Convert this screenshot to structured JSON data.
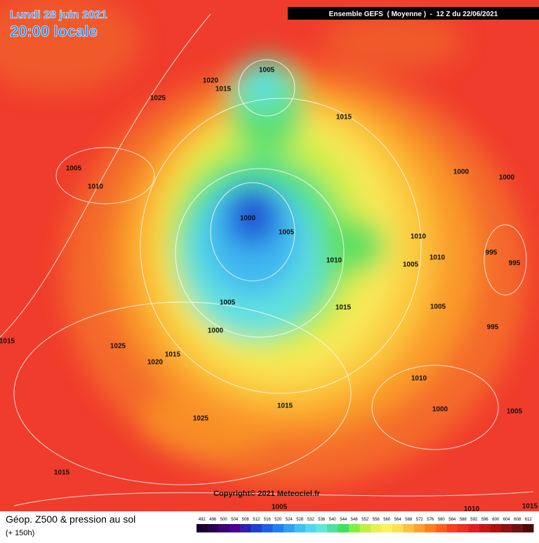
{
  "header": {
    "date": "Lundi 28 juin 2021",
    "time": "20:00 locale",
    "model": "Ensemble GEFS  ( Moyenne )  -  12 Z du 22/06/2021"
  },
  "map": {
    "copyright": "Copyright© 2021 Meteociel.fr",
    "isobar_labels": [
      "1005",
      "1020",
      "1015",
      "1025",
      "1015",
      "1005",
      "1010",
      "1000",
      "1000",
      "1000",
      "1005",
      "1010",
      "995",
      "1010",
      "1010",
      "1005",
      "995",
      "1005",
      "1015",
      "1005",
      "1000",
      "995",
      "1025",
      "1015",
      "1015",
      "1020",
      "1010",
      "1015",
      "1000",
      "1005",
      "1025",
      "1015",
      "1005",
      "1010",
      "1015"
    ]
  },
  "footer": {
    "title": "Géop. Z500 & pression au sol",
    "lead": "(+ 150h)"
  },
  "scale": {
    "labels": [
      "492",
      "496",
      "500",
      "504",
      "508",
      "512",
      "516",
      "520",
      "524",
      "528",
      "532",
      "536",
      "540",
      "544",
      "548",
      "552",
      "556",
      "560",
      "564",
      "568",
      "572",
      "576",
      "580",
      "584",
      "588",
      "592",
      "596",
      "600",
      "604",
      "608",
      "612"
    ],
    "colors": [
      "#1a0030",
      "#2a0050",
      "#3a0070",
      "#4a0090",
      "#3020b0",
      "#2040d0",
      "#2060e8",
      "#2080f0",
      "#30a0f0",
      "#40c0f0",
      "#50d8f0",
      "#60e8e0",
      "#50e0a0",
      "#40e060",
      "#80f040",
      "#c0f040",
      "#e8f050",
      "#fff060",
      "#ffe050",
      "#ffc040",
      "#ffa030",
      "#ff8020",
      "#ff6020",
      "#f84020",
      "#f03020",
      "#e02020",
      "#c81818",
      "#b01010",
      "#901010",
      "#701010",
      "#500808"
    ]
  }
}
